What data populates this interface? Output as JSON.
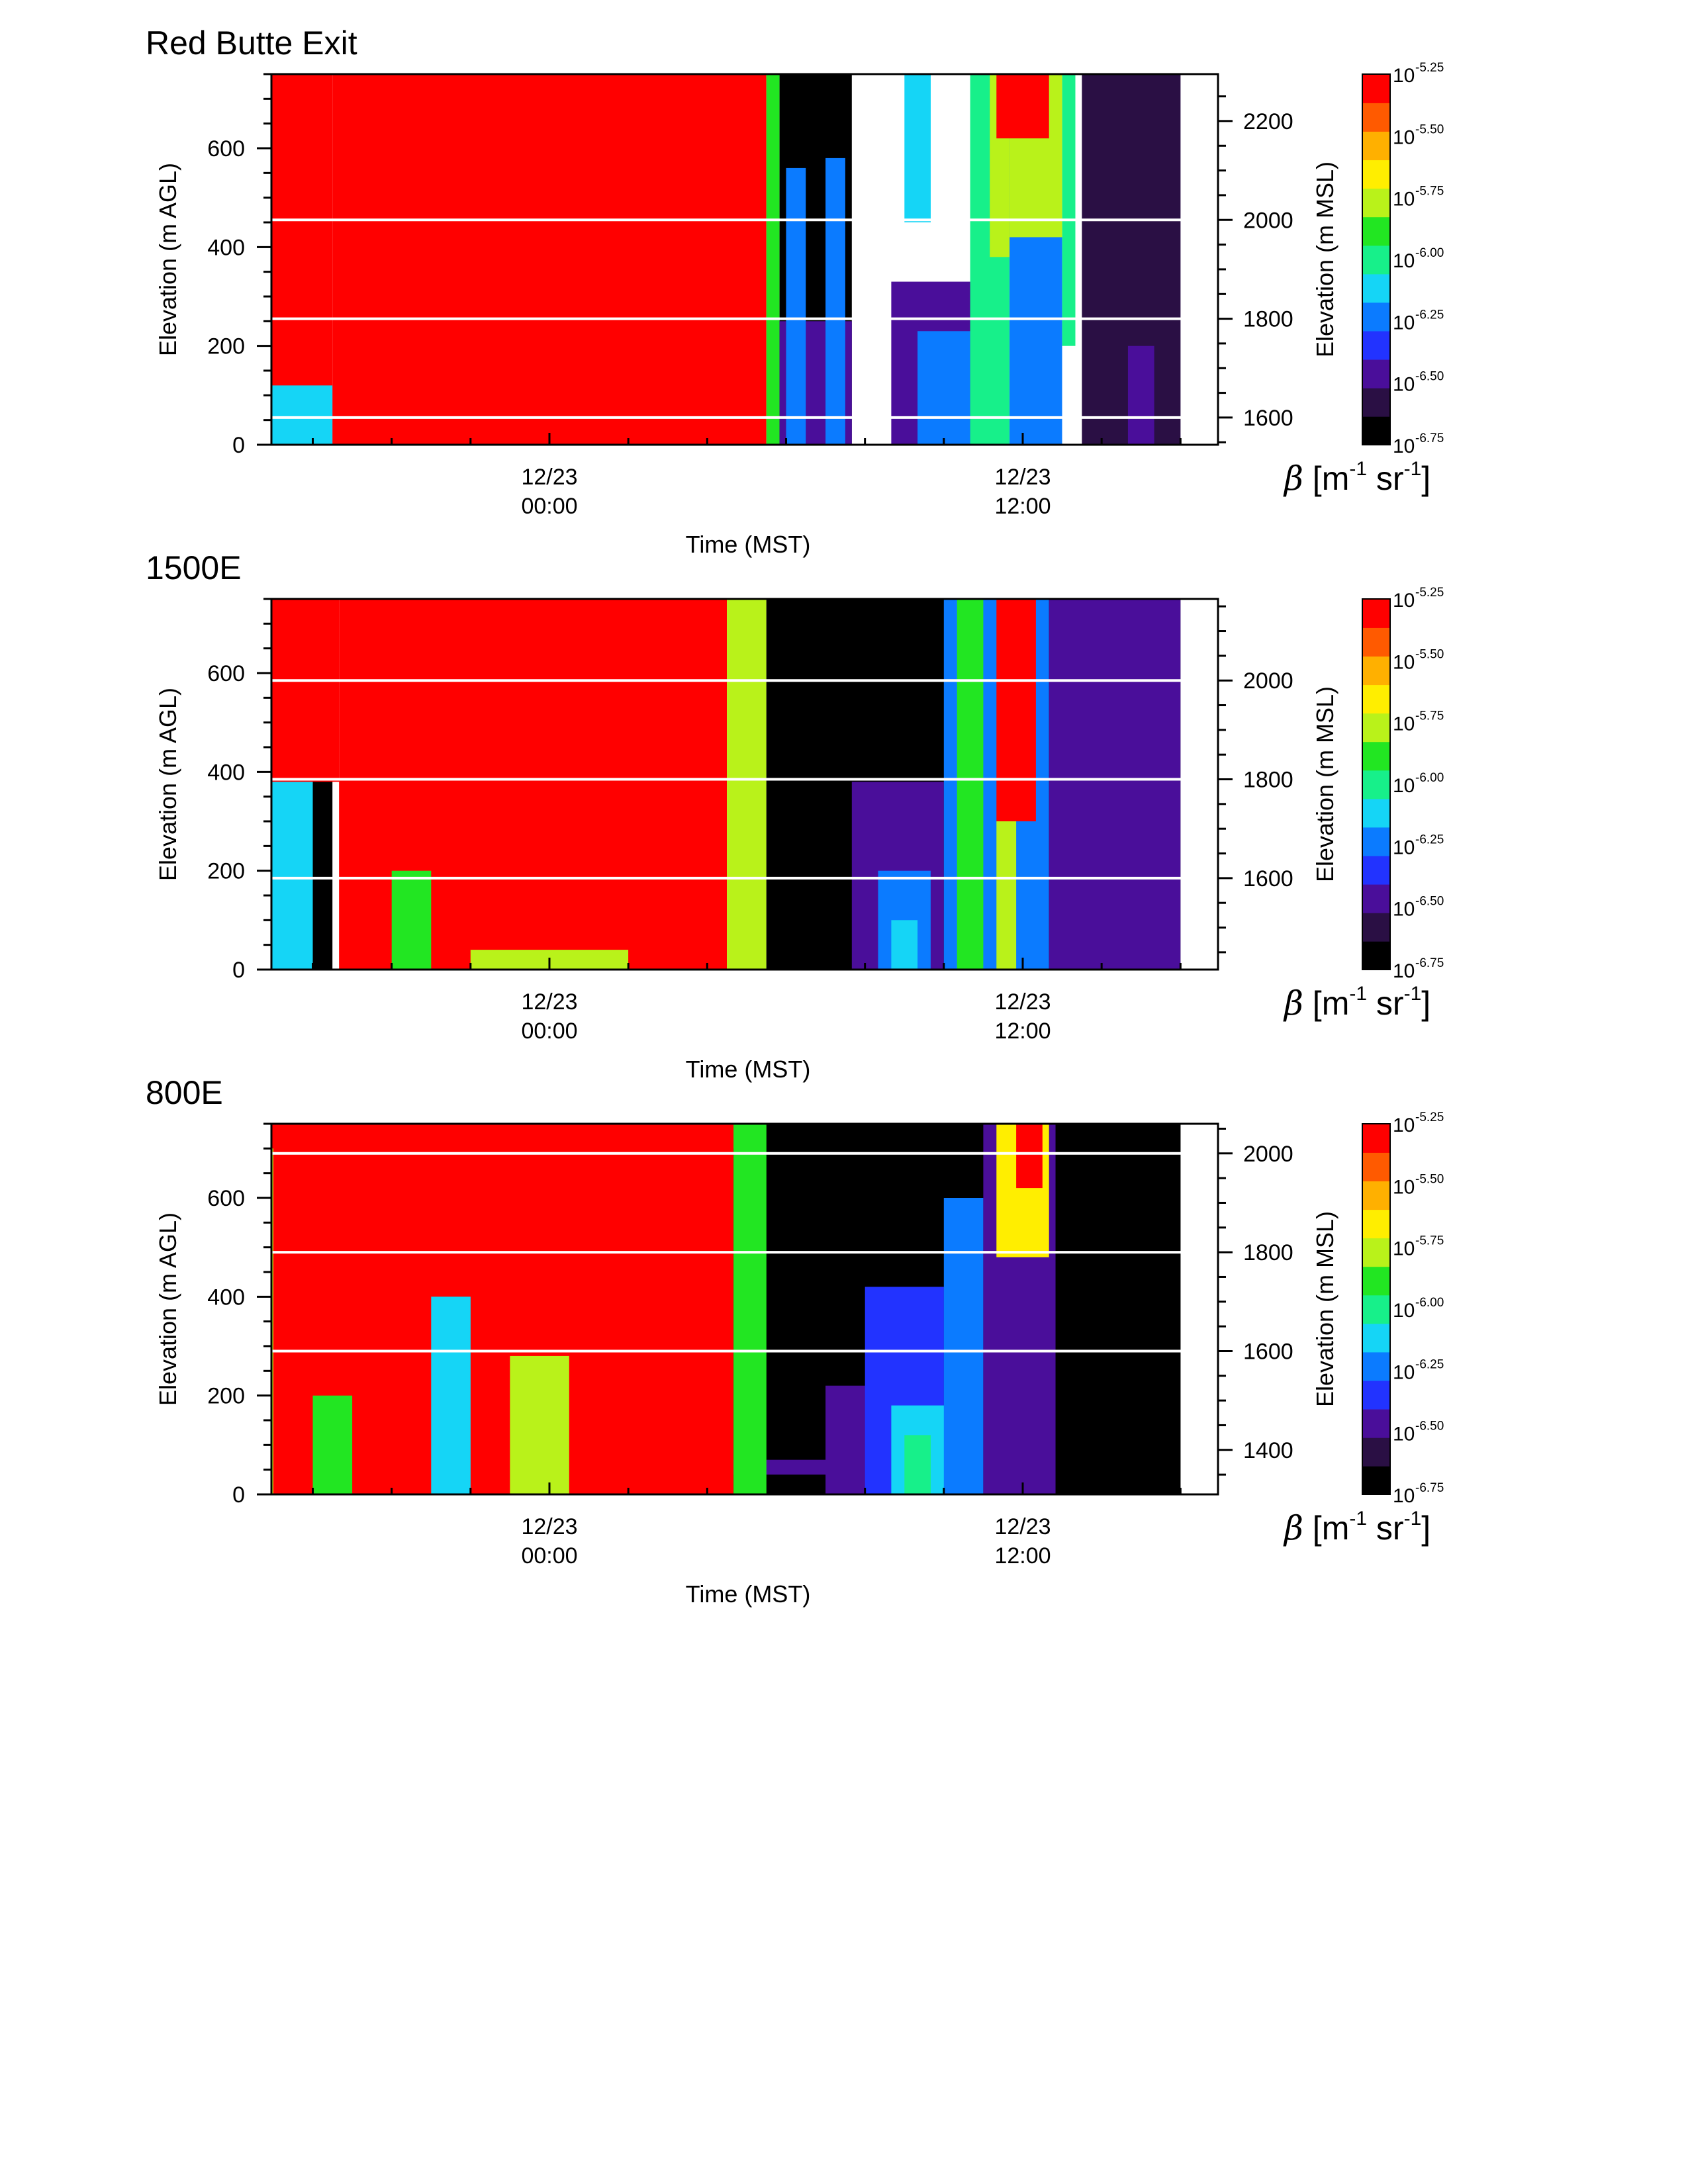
{
  "figure": {
    "colorbar": {
      "base": "10",
      "tick_exponents": [
        "-5.25",
        "-5.50",
        "-5.75",
        "-6.00",
        "-6.25",
        "-6.50",
        "-6.75"
      ],
      "label_symbol": "β",
      "label_units": [
        {
          "text": " [m",
          "sup": false
        },
        {
          "text": "-1",
          "sup": true
        },
        {
          "text": " sr",
          "sup": false
        },
        {
          "text": "-1",
          "sup": true
        },
        {
          "text": "]",
          "sup": false
        }
      ],
      "colors": [
        "#000000",
        "#2a0f44",
        "#4a0e9a",
        "#2233ff",
        "#0b7bff",
        "#15d5f6",
        "#17f08a",
        "#22e622",
        "#b9f21a",
        "#ffee00",
        "#ffb000",
        "#ff5a00",
        "#ff0000"
      ]
    }
  },
  "chart_data": [
    {
      "type": "heatmap",
      "title": "Red Butte Exit",
      "ylabel": "Elevation (m AGL)",
      "y2label": "Elevation (m MSL)",
      "xlabel": "Time (MST)",
      "ylim": [
        0,
        750
      ],
      "y2lim": [
        1545,
        2295
      ],
      "yticks": [
        "0",
        "200",
        "400",
        "600"
      ],
      "y2ticks": [
        "1600",
        "1800",
        "2000",
        "2200"
      ],
      "y2_minor_step": 50,
      "xticks": [
        {
          "date": "12/23",
          "time": "00:00"
        },
        {
          "date": "12/23",
          "time": "12:00"
        }
      ],
      "reference_lines_m_msl": [
        1600,
        1800,
        2000
      ],
      "grid": false,
      "colorbar_range_log10": [
        -6.75,
        -5.25
      ],
      "log10_backscatter_regions": [
        {
          "t_start": "12/22 09:00",
          "t_end": "12/22 16:00",
          "z_bottom": 0,
          "z_top": 750,
          "value": -6.75
        },
        {
          "t_start": "12/22 09:00",
          "t_end": "12/22 11:30",
          "z_bottom": 0,
          "z_top": 250,
          "value": -6.5
        },
        {
          "t_start": "12/22 11:00",
          "t_end": "12/22 16:00",
          "z_bottom": 0,
          "z_top": 60,
          "value": -6.4
        },
        {
          "t_start": "12/22 11:50",
          "t_end": "12/22 12:20",
          "z_bottom": 0,
          "z_top": 750,
          "value": -6.4
        },
        {
          "t_start": "12/22 12:50",
          "t_end": "12/22 13:00",
          "z_bottom": 0,
          "z_top": 750,
          "value": -6.0
        },
        {
          "t_start": "12/22 13:00",
          "t_end": "12/22 13:20",
          "z_bottom": 0,
          "z_top": 750,
          "value": -5.8
        },
        {
          "t_start": "12/22 13:30",
          "t_end": "12/22 14:00",
          "z_bottom": 0,
          "z_top": 750,
          "value": -5.6
        },
        {
          "t_start": "12/22 14:00",
          "t_end": "12/22 14:20",
          "z_bottom": 0,
          "z_top": 750,
          "value": -6.3
        },
        {
          "t_start": "12/22 14:20",
          "t_end": "12/22 15:00",
          "z_bottom": 0,
          "z_top": 750,
          "value": -5.4
        },
        {
          "t_start": "12/22 15:00",
          "t_end": "12/22 16:30",
          "z_bottom": 0,
          "z_top": 750,
          "value": -5.9
        },
        {
          "t_start": "12/22 16:30",
          "t_end": "12/22 18:30",
          "z_bottom": 0,
          "z_top": 750,
          "value": -5.3
        },
        {
          "t_start": "12/22 16:30",
          "t_end": "12/22 18:30",
          "z_bottom": 0,
          "z_top": 120,
          "value": -6.1
        },
        {
          "t_start": "12/22 18:30",
          "t_end": "12/23 05:30",
          "z_bottom": 0,
          "z_top": 750,
          "value": -5.25
        },
        {
          "t_start": "12/23 05:30",
          "t_end": "12/23 05:50",
          "z_bottom": 0,
          "z_top": 750,
          "value": -5.9
        },
        {
          "t_start": "12/23 05:50",
          "t_end": "12/23 07:40",
          "z_bottom": 0,
          "z_top": 750,
          "value": -6.75
        },
        {
          "t_start": "12/23 05:50",
          "t_end": "12/23 07:40",
          "z_bottom": 0,
          "z_top": 250,
          "value": -6.5
        },
        {
          "t_start": "12/23 06:00",
          "t_end": "12/23 06:30",
          "z_bottom": 0,
          "z_top": 560,
          "value": -6.2
        },
        {
          "t_start": "12/23 07:00",
          "t_end": "12/23 07:30",
          "z_bottom": 0,
          "z_top": 580,
          "value": -6.2
        },
        {
          "t_start": "12/23 09:00",
          "t_end": "12/23 09:40",
          "z_bottom": 450,
          "z_top": 750,
          "value": -6.1
        },
        {
          "t_start": "12/23 08:40",
          "t_end": "12/23 11:00",
          "z_bottom": 0,
          "z_top": 330,
          "value": -6.5
        },
        {
          "t_start": "12/23 09:20",
          "t_end": "12/23 10:40",
          "z_bottom": 0,
          "z_top": 230,
          "value": -6.25
        },
        {
          "t_start": "12/23 10:40",
          "t_end": "12/23 11:40",
          "z_bottom": 0,
          "z_top": 750,
          "value": -6.0
        },
        {
          "t_start": "12/23 11:10",
          "t_end": "12/23 11:50",
          "z_bottom": 380,
          "z_top": 750,
          "value": -5.8
        },
        {
          "t_start": "12/23 11:40",
          "t_end": "12/23 13:00",
          "z_bottom": 0,
          "z_top": 700,
          "value": -6.3
        },
        {
          "t_start": "12/23 11:40",
          "t_end": "12/23 13:00",
          "z_bottom": 420,
          "z_top": 750,
          "value": -5.7
        },
        {
          "t_start": "12/23 11:20",
          "t_end": "12/23 12:40",
          "z_bottom": 620,
          "z_top": 750,
          "value": -5.25
        },
        {
          "t_start": "12/23 13:00",
          "t_end": "12/23 13:20",
          "z_bottom": 200,
          "z_top": 750,
          "value": -6.0
        },
        {
          "t_start": "12/23 13:30",
          "t_end": "12/23 16:00",
          "z_bottom": 0,
          "z_top": 750,
          "value": -6.65
        },
        {
          "t_start": "12/23 14:40",
          "t_end": "12/23 15:20",
          "z_bottom": 0,
          "z_top": 200,
          "value": -6.5
        }
      ]
    },
    {
      "type": "heatmap",
      "title": "1500E",
      "ylabel": "Elevation (m AGL)",
      "y2label": "Elevation (m MSL)",
      "xlabel": "Time (MST)",
      "ylim": [
        0,
        750
      ],
      "y2lim": [
        1415,
        2165
      ],
      "yticks": [
        "0",
        "200",
        "400",
        "600"
      ],
      "y2ticks": [
        "1600",
        "1800",
        "2000"
      ],
      "y2_minor_step": 50,
      "xticks": [
        {
          "date": "12/23",
          "time": "00:00"
        },
        {
          "date": "12/23",
          "time": "12:00"
        }
      ],
      "reference_lines_m_msl": [
        1600,
        1800,
        2000
      ],
      "grid": false,
      "colorbar_range_log10": [
        -6.75,
        -5.25
      ],
      "log10_backscatter_regions": [
        {
          "t_start": "12/22 09:00",
          "t_end": "12/22 18:30",
          "z_bottom": 0,
          "z_top": 750,
          "value": -6.75
        },
        {
          "t_start": "12/22 09:00",
          "t_end": "12/22 16:00",
          "z_bottom": 0,
          "z_top": 380,
          "value": -6.6
        },
        {
          "t_start": "12/22 09:00",
          "t_end": "12/22 16:00",
          "z_bottom": 20,
          "z_top": 60,
          "value": -6.45
        },
        {
          "t_start": "12/22 11:50",
          "t_end": "12/22 12:30",
          "z_bottom": 0,
          "z_top": 750,
          "value": -6.4
        },
        {
          "t_start": "12/22 12:40",
          "t_end": "12/22 13:00",
          "z_bottom": 0,
          "z_top": 750,
          "value": -5.5
        },
        {
          "t_start": "12/22 13:20",
          "t_end": "12/22 13:40",
          "z_bottom": 0,
          "z_top": 750,
          "value": -6.2
        },
        {
          "t_start": "12/22 14:10",
          "t_end": "12/22 14:30",
          "z_bottom": 0,
          "z_top": 750,
          "value": -5.6
        },
        {
          "t_start": "12/22 15:00",
          "t_end": "12/22 16:00",
          "z_bottom": 0,
          "z_top": 750,
          "value": -5.4
        },
        {
          "t_start": "12/22 16:00",
          "t_end": "12/22 18:00",
          "z_bottom": 0,
          "z_top": 420,
          "value": -6.1
        },
        {
          "t_start": "12/22 16:20",
          "t_end": "12/22 18:40",
          "z_bottom": 380,
          "z_top": 750,
          "value": -5.3
        },
        {
          "t_start": "12/22 18:40",
          "t_end": "12/23 04:30",
          "z_bottom": 0,
          "z_top": 750,
          "value": -5.25
        },
        {
          "t_start": "12/22 20:00",
          "t_end": "12/22 21:00",
          "z_bottom": 0,
          "z_top": 200,
          "value": -5.9
        },
        {
          "t_start": "12/22 22:00",
          "t_end": "12/23 02:00",
          "z_bottom": 0,
          "z_top": 40,
          "value": -5.75
        },
        {
          "t_start": "12/23 04:30",
          "t_end": "12/23 05:30",
          "z_bottom": 0,
          "z_top": 750,
          "value": -5.7
        },
        {
          "t_start": "12/23 05:30",
          "t_end": "12/23 16:00",
          "z_bottom": 0,
          "z_top": 750,
          "value": -6.75
        },
        {
          "t_start": "12/23 07:40",
          "t_end": "12/23 10:00",
          "z_bottom": 0,
          "z_top": 380,
          "value": -6.45
        },
        {
          "t_start": "12/23 08:20",
          "t_end": "12/23 09:40",
          "z_bottom": 0,
          "z_top": 200,
          "value": -6.2
        },
        {
          "t_start": "12/23 08:40",
          "t_end": "12/23 09:20",
          "z_bottom": 0,
          "z_top": 100,
          "value": -6.1
        },
        {
          "t_start": "12/23 10:00",
          "t_end": "12/23 12:40",
          "z_bottom": 0,
          "z_top": 750,
          "value": -6.3
        },
        {
          "t_start": "12/23 10:20",
          "t_end": "12/23 11:00",
          "z_bottom": 0,
          "z_top": 750,
          "value": -5.9
        },
        {
          "t_start": "12/23 11:20",
          "t_end": "12/23 12:20",
          "z_bottom": 300,
          "z_top": 750,
          "value": -5.3
        },
        {
          "t_start": "12/23 11:20",
          "t_end": "12/23 11:50",
          "z_bottom": 0,
          "z_top": 300,
          "value": -5.8
        },
        {
          "t_start": "12/23 12:40",
          "t_end": "12/23 16:00",
          "z_bottom": 0,
          "z_top": 750,
          "value": -6.55
        }
      ]
    },
    {
      "type": "heatmap",
      "title": "800E",
      "ylabel": "Elevation (m AGL)",
      "y2label": "Elevation (m MSL)",
      "xlabel": "Time (MST)",
      "ylim": [
        0,
        750
      ],
      "y2lim": [
        1310,
        2060
      ],
      "yticks": [
        "0",
        "200",
        "400",
        "600"
      ],
      "y2ticks": [
        "1400",
        "1600",
        "1800",
        "2000"
      ],
      "y2_minor_step": 50,
      "xticks": [
        {
          "date": "12/23",
          "time": "00:00"
        },
        {
          "date": "12/23",
          "time": "12:00"
        }
      ],
      "reference_lines_m_msl": [
        1600,
        1800,
        2000
      ],
      "grid": false,
      "colorbar_range_log10": [
        -6.75,
        -5.25
      ],
      "log10_backscatter_regions": [
        {
          "t_start": "12/22 09:00",
          "t_end": "12/23 16:00",
          "z_bottom": 0,
          "z_top": 750,
          "value": -6.75
        },
        {
          "t_start": "12/22 09:00",
          "t_end": "12/22 18:00",
          "z_bottom": 0,
          "z_top": 280,
          "value": -6.6
        },
        {
          "t_start": "12/22 09:00",
          "t_end": "12/23 08:00",
          "z_bottom": 40,
          "z_top": 70,
          "value": -6.45
        },
        {
          "t_start": "12/22 11:50",
          "t_end": "12/22 12:20",
          "z_bottom": 0,
          "z_top": 750,
          "value": -6.3
        },
        {
          "t_start": "12/22 12:50",
          "t_end": "12/22 13:20",
          "z_bottom": 0,
          "z_top": 750,
          "value": -5.4
        },
        {
          "t_start": "12/22 13:50",
          "t_end": "12/22 14:20",
          "z_bottom": 0,
          "z_top": 750,
          "value": -5.6
        },
        {
          "t_start": "12/22 14:20",
          "t_end": "12/22 15:10",
          "z_bottom": 350,
          "z_top": 750,
          "value": -5.7
        },
        {
          "t_start": "12/22 15:50",
          "t_end": "12/22 17:20",
          "z_bottom": 0,
          "z_top": 750,
          "value": -5.8
        },
        {
          "t_start": "12/22 16:30",
          "t_end": "12/23 05:20",
          "z_bottom": 700,
          "z_top": 750,
          "value": -5.25
        },
        {
          "t_start": "12/22 17:00",
          "t_end": "12/23 04:40",
          "z_bottom": 0,
          "z_top": 750,
          "value": -5.25
        },
        {
          "t_start": "12/22 18:00",
          "t_end": "12/22 19:00",
          "z_bottom": 0,
          "z_top": 200,
          "value": -5.9
        },
        {
          "t_start": "12/22 21:00",
          "t_end": "12/22 22:00",
          "z_bottom": 0,
          "z_top": 400,
          "value": -6.1
        },
        {
          "t_start": "12/22 23:00",
          "t_end": "12/23 00:30",
          "z_bottom": 0,
          "z_top": 280,
          "value": -5.75
        },
        {
          "t_start": "12/23 04:40",
          "t_end": "12/23 05:30",
          "z_bottom": 0,
          "z_top": 750,
          "value": -5.9
        },
        {
          "t_start": "12/23 07:00",
          "t_end": "12/23 08:40",
          "z_bottom": 0,
          "z_top": 220,
          "value": -6.5
        },
        {
          "t_start": "12/23 08:00",
          "t_end": "12/23 10:00",
          "z_bottom": 0,
          "z_top": 420,
          "value": -6.4
        },
        {
          "t_start": "12/23 08:40",
          "t_end": "12/23 10:20",
          "z_bottom": 0,
          "z_top": 180,
          "value": -6.15
        },
        {
          "t_start": "12/23 09:00",
          "t_end": "12/23 09:40",
          "z_bottom": 0,
          "z_top": 120,
          "value": -6.0
        },
        {
          "t_start": "12/23 10:00",
          "t_end": "12/23 11:00",
          "z_bottom": 0,
          "z_top": 600,
          "value": -6.25
        },
        {
          "t_start": "12/23 11:00",
          "t_end": "12/23 12:50",
          "z_bottom": 0,
          "z_top": 750,
          "value": -6.45
        },
        {
          "t_start": "12/23 11:20",
          "t_end": "12/23 12:40",
          "z_bottom": 480,
          "z_top": 750,
          "value": -5.6
        },
        {
          "t_start": "12/23 11:50",
          "t_end": "12/23 12:30",
          "z_bottom": 620,
          "z_top": 750,
          "value": -5.25
        },
        {
          "t_start": "12/23 12:50",
          "t_end": "12/23 16:00",
          "z_bottom": 0,
          "z_top": 750,
          "value": -6.7
        }
      ]
    }
  ]
}
